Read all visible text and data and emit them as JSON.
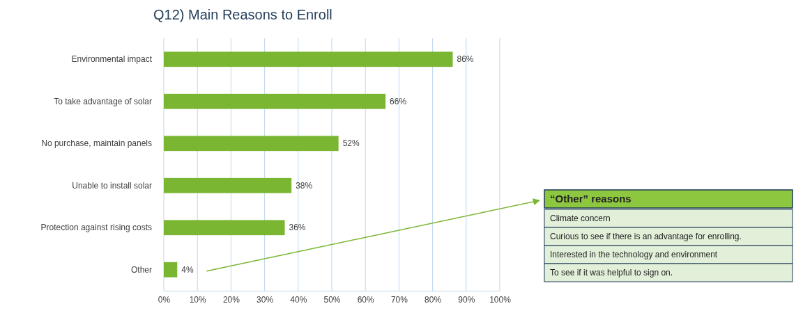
{
  "chart_data": {
    "type": "bar",
    "orientation": "horizontal",
    "title": "Q12) Main Reasons to Enroll",
    "categories": [
      "Environmental impact",
      "To take advantage of solar",
      "No purchase, maintain panels",
      "Unable to install solar",
      "Protection against rising costs",
      "Other"
    ],
    "values": [
      86,
      66,
      52,
      38,
      36,
      4
    ],
    "color": "#7ab632",
    "xlim": [
      0,
      100
    ],
    "xticks": [
      {
        "value": 0,
        "label": "0%"
      },
      {
        "value": 10,
        "label": "10%"
      },
      {
        "value": 20,
        "label": "20%"
      },
      {
        "value": 30,
        "label": "30%"
      },
      {
        "value": 40,
        "label": "40%"
      },
      {
        "value": 50,
        "label": "50%"
      },
      {
        "value": 60,
        "label": "60%"
      },
      {
        "value": 70,
        "label": "70%"
      },
      {
        "value": 80,
        "label": "80%"
      },
      {
        "value": 90,
        "label": "90%"
      },
      {
        "value": 100,
        "label": "100%"
      }
    ],
    "value_labels": [
      "86%",
      "66%",
      "52%",
      "38%",
      "36%",
      "4%"
    ],
    "grid": "x",
    "annotations": [
      "“Other” reasons",
      "Climate concern",
      "Curious to see if there is an advantage for enrolling.",
      "Interested in the technology and environment",
      "To see if it was helpful to sign on."
    ]
  }
}
